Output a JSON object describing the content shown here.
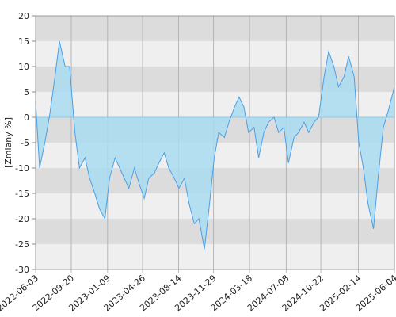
{
  "chart_data": {
    "type": "area",
    "y_label": "[Zmiany %]",
    "color": "#4a9fe8",
    "fill": "#a9dcf0",
    "band_colors": [
      "#dcdcdc",
      "#efefef"
    ],
    "ylim": [
      -30,
      20
    ],
    "yticks": [
      -30,
      -25,
      -20,
      -15,
      -10,
      -5,
      0,
      5,
      10,
      15,
      20
    ],
    "xlim": [
      "2022-06-03",
      "2025-06-04"
    ],
    "xticks": [
      "2022-06-03",
      "2022-09-20",
      "2023-01-09",
      "2023-04-26",
      "2023-08-14",
      "2023-11-29",
      "2024-03-18",
      "2024-07-08",
      "2024-10-22",
      "2025-02-14",
      "2025-06-04"
    ],
    "x": [
      "2022-06-03",
      "2022-06-15",
      "2022-07-01",
      "2022-07-15",
      "2022-08-01",
      "2022-08-15",
      "2022-09-01",
      "2022-09-15",
      "2022-10-01",
      "2022-10-15",
      "2022-11-01",
      "2022-11-15",
      "2022-12-01",
      "2022-12-15",
      "2023-01-01",
      "2023-01-15",
      "2023-02-01",
      "2023-02-15",
      "2023-03-01",
      "2023-03-15",
      "2023-04-01",
      "2023-04-15",
      "2023-05-01",
      "2023-05-15",
      "2023-06-01",
      "2023-06-15",
      "2023-07-01",
      "2023-07-15",
      "2023-08-01",
      "2023-08-15",
      "2023-09-01",
      "2023-09-15",
      "2023-10-01",
      "2023-10-15",
      "2023-11-01",
      "2023-11-15",
      "2023-12-01",
      "2023-12-15",
      "2024-01-01",
      "2024-01-15",
      "2024-02-01",
      "2024-02-15",
      "2024-03-01",
      "2024-03-15",
      "2024-04-01",
      "2024-04-15",
      "2024-05-01",
      "2024-05-15",
      "2024-06-01",
      "2024-06-15",
      "2024-07-01",
      "2024-07-15",
      "2024-08-01",
      "2024-08-15",
      "2024-09-01",
      "2024-09-15",
      "2024-10-01",
      "2024-10-15",
      "2024-11-01",
      "2024-11-15",
      "2024-12-01",
      "2024-12-15",
      "2025-01-01",
      "2025-01-15",
      "2025-02-01",
      "2025-02-15",
      "2025-03-01",
      "2025-03-15",
      "2025-04-01",
      "2025-04-15",
      "2025-05-01",
      "2025-05-15",
      "2025-06-04"
    ],
    "values": [
      3,
      -10,
      -5,
      0,
      8,
      15,
      10,
      10,
      -3,
      -10,
      -8,
      -12,
      -15,
      -18,
      -20,
      -12,
      -8,
      -10,
      -12,
      -14,
      -10,
      -13,
      -16,
      -12,
      -11,
      -9,
      -7,
      -10,
      -12,
      -14,
      -12,
      -17,
      -21,
      -20,
      -26,
      -18,
      -8,
      -3,
      -4,
      -1,
      2,
      4,
      2,
      -3,
      -2,
      -8,
      -3,
      -1,
      0,
      -3,
      -2,
      -9,
      -4,
      -3,
      -1,
      -3,
      -1,
      0,
      8,
      13,
      10,
      6,
      8,
      12,
      8,
      -5,
      -10,
      -17,
      -22,
      -12,
      -2,
      1,
      6
    ]
  }
}
